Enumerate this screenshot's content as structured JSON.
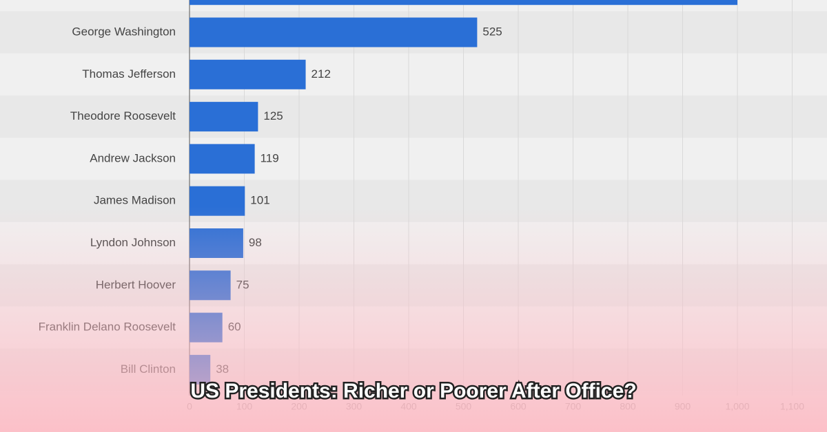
{
  "chart_data": {
    "type": "hbar",
    "title": "US Presidents: Richer or Poorer After Office?",
    "categories": [
      null,
      "George Washington",
      "Thomas Jefferson",
      "Theodore Roosevelt",
      "Andrew Jackson",
      "James Madison",
      "Lyndon Johnson",
      "Herbert Hoover",
      "Franklin Delano Roosevelt",
      "Bill Clinton"
    ],
    "values": [
      1000,
      525,
      212,
      125,
      119,
      101,
      98,
      75,
      60,
      38
    ],
    "value_labels": [
      null,
      "525",
      "212",
      "125",
      "119",
      "101",
      "98",
      "75",
      "60",
      "38"
    ],
    "color": "#2a6fd6",
    "xlim": [
      0,
      1100
    ],
    "xticks": [
      0,
      100,
      200,
      300,
      400,
      500,
      600,
      700,
      800,
      900,
      {
        "value": 1000,
        "label": "1,000"
      },
      {
        "value": 1100,
        "label": "1,100"
      }
    ],
    "grid": true
  }
}
